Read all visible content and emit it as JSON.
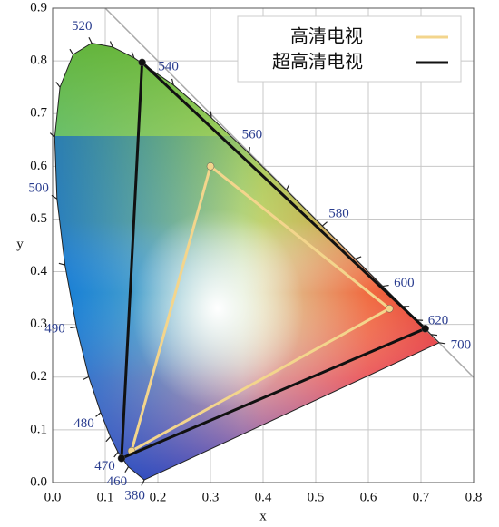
{
  "chart_data": {
    "type": "line",
    "x_label": "x",
    "y_label": "y",
    "xlim": [
      0,
      0.8
    ],
    "ylim": [
      0,
      0.9
    ],
    "xticks": [
      {
        "value": 0,
        "label": "0.0"
      },
      {
        "value": 0.1,
        "label": "0.1"
      },
      {
        "value": 0.2,
        "label": "0.2"
      },
      {
        "value": 0.3,
        "label": "0.3"
      },
      {
        "value": 0.4,
        "label": "0.4"
      },
      {
        "value": 0.5,
        "label": "0.5"
      },
      {
        "value": 0.6,
        "label": "0.6"
      },
      {
        "value": 0.7,
        "label": "0.7"
      },
      {
        "value": 0.8,
        "label": "0.8"
      }
    ],
    "yticks": [
      {
        "value": 0,
        "label": "0.0"
      },
      {
        "value": 0.1,
        "label": "0.1"
      },
      {
        "value": 0.2,
        "label": "0.2"
      },
      {
        "value": 0.3,
        "label": "0.3"
      },
      {
        "value": 0.4,
        "label": "0.4"
      },
      {
        "value": 0.5,
        "label": "0.5"
      },
      {
        "value": 0.6,
        "label": "0.6"
      },
      {
        "value": 0.7,
        "label": "0.7"
      },
      {
        "value": 0.8,
        "label": "0.8"
      },
      {
        "value": 0.9,
        "label": "0.9"
      }
    ],
    "grid": true,
    "legend": "upper right",
    "locus": {
      "x": [
        0.1741,
        0.144,
        0.1241,
        0.1096,
        0.0913,
        0.0687,
        0.0454,
        0.0235,
        0.0082,
        0.0039,
        0.0139,
        0.0389,
        0.0743,
        0.1142,
        0.1547,
        0.2296,
        0.3016,
        0.3731,
        0.4441,
        0.5125,
        0.5752,
        0.627,
        0.6658,
        0.6915,
        0.719,
        0.7347
      ],
      "y": [
        0.005,
        0.0297,
        0.0578,
        0.0868,
        0.1327,
        0.2007,
        0.295,
        0.4127,
        0.5384,
        0.6548,
        0.7502,
        0.812,
        0.8338,
        0.8262,
        0.8059,
        0.7543,
        0.6923,
        0.6245,
        0.5547,
        0.4866,
        0.4242,
        0.3725,
        0.334,
        0.3083,
        0.2809,
        0.2653
      ],
      "wavelengths": [
        380,
        460,
        470,
        null,
        480,
        null,
        490,
        null,
        500,
        null,
        null,
        null,
        520,
        null,
        null,
        540,
        null,
        560,
        null,
        580,
        null,
        600,
        null,
        620,
        null,
        700
      ]
    },
    "series": [
      {
        "name": "高清电视",
        "color": "#f3d58c",
        "x": [
          0.64,
          0.3,
          0.15
        ],
        "y": [
          0.33,
          0.6,
          0.06
        ]
      },
      {
        "name": "超高清电视",
        "color": "#111111",
        "x": [
          0.708,
          0.17,
          0.131
        ],
        "y": [
          0.292,
          0.797,
          0.046
        ]
      }
    ]
  }
}
